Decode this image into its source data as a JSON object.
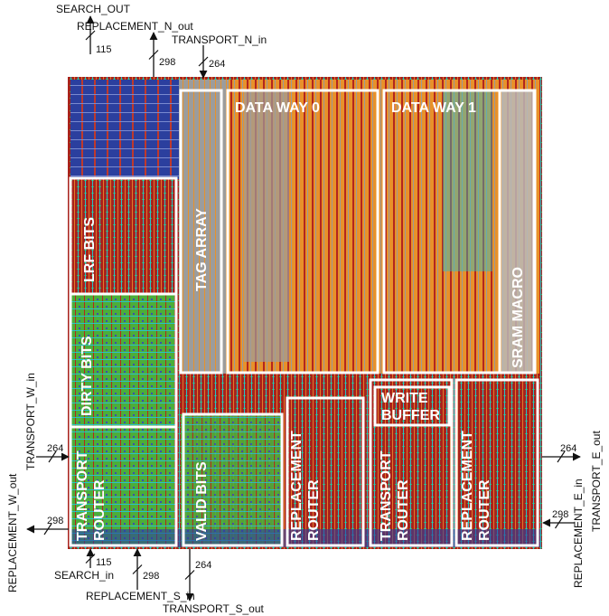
{
  "blocks": [
    {
      "lines": [
        "TAG ARRAY"
      ]
    },
    {
      "lines": [
        "DATA WAY 0"
      ]
    },
    {
      "lines": [
        "DATA WAY 1"
      ]
    },
    {
      "lines": [
        "SRAM MACRO"
      ]
    },
    {
      "lines": [
        "LRF BITS"
      ]
    },
    {
      "lines": [
        "DIRTY BITS"
      ]
    },
    {
      "lines": [
        "TRANSPORT",
        "ROUTER"
      ]
    },
    {
      "lines": [
        "VALID BITS"
      ]
    },
    {
      "lines": [
        "REPLACEMENT",
        "ROUTER"
      ]
    },
    {
      "lines": [
        "WRITE",
        "BUFFER"
      ]
    },
    {
      "lines": [
        "TRANSPORT",
        "ROUTER"
      ]
    },
    {
      "lines": [
        "REPLACEMENT",
        "ROUTER"
      ]
    }
  ],
  "signals": [
    {
      "name": "SEARCH_OUT",
      "width": 115
    },
    {
      "name": "REPLACEMENT_N_out",
      "width": 298
    },
    {
      "name": "TRANSPORT_N_in",
      "width": 264
    },
    {
      "name": "TRANSPORT_W_in",
      "width": 264
    },
    {
      "name": "REPLACEMENT_W_out",
      "width": 298
    },
    {
      "name": "SEARCH_in",
      "width": 115
    },
    {
      "name": "REPLACEMENT_S_in",
      "width": 298
    },
    {
      "name": "TRANSPORT_S_out",
      "width": 264
    },
    {
      "name": "TRANSPORT_E_out",
      "width": 264
    },
    {
      "name": "REPLACEMENT_E_in",
      "width": 298
    }
  ]
}
